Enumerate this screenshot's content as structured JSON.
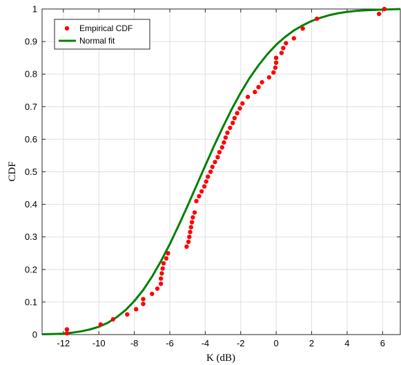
{
  "chart_data": {
    "type": "scatter",
    "title": "",
    "xlabel": "K (dB)",
    "ylabel": "CDF",
    "xlim": [
      -13.2,
      7
    ],
    "ylim": [
      0,
      1
    ],
    "xticks": [
      -12,
      -10,
      -8,
      -6,
      -4,
      -2,
      0,
      2,
      4,
      6
    ],
    "yticks": [
      0,
      0.1,
      0.2,
      0.3,
      0.4,
      0.5,
      0.6,
      0.7,
      0.8,
      0.9,
      1
    ],
    "xtick_labels": [
      "-12",
      "-10",
      "-8",
      "-6",
      "-4",
      "-2",
      "0",
      "2",
      "4",
      "6"
    ],
    "ytick_labels": [
      "0",
      "0.1",
      "0.2",
      "0.3",
      "0.4",
      "0.5",
      "0.6",
      "0.7",
      "0.8",
      "0.9",
      "1"
    ],
    "grid": true,
    "legend_position": "top-left",
    "series": [
      {
        "name": "Empirical CDF",
        "kind": "points",
        "color": "#ff0000",
        "x": [
          -11.8,
          -11.8,
          -9.9,
          -9.2,
          -8.4,
          -7.9,
          -7.5,
          -7.5,
          -7.0,
          -6.7,
          -6.5,
          -6.5,
          -6.45,
          -6.4,
          -6.35,
          -6.2,
          -6.1,
          -5.05,
          -4.95,
          -4.9,
          -4.85,
          -4.8,
          -4.75,
          -4.7,
          -4.6,
          -4.5,
          -4.35,
          -4.2,
          -4.05,
          -3.95,
          -3.85,
          -3.7,
          -3.6,
          -3.45,
          -3.3,
          -3.2,
          -3.05,
          -2.95,
          -2.85,
          -2.75,
          -2.6,
          -2.45,
          -2.35,
          -2.2,
          -2.05,
          -1.9,
          -1.6,
          -1.2,
          -1.0,
          -0.8,
          -0.4,
          -0.15,
          -0.05,
          0.0,
          0.0,
          0.3,
          0.4,
          0.55,
          1.0,
          1.5,
          2.3,
          5.8,
          6.1
        ],
        "y": [
          0.004,
          0.016,
          0.031,
          0.047,
          0.062,
          0.078,
          0.094,
          0.109,
          0.125,
          0.141,
          0.156,
          0.172,
          0.188,
          0.203,
          0.219,
          0.234,
          0.25,
          0.27,
          0.285,
          0.3,
          0.315,
          0.33,
          0.345,
          0.36,
          0.375,
          0.41,
          0.425,
          0.44,
          0.455,
          0.47,
          0.485,
          0.5,
          0.515,
          0.53,
          0.545,
          0.56,
          0.575,
          0.59,
          0.605,
          0.62,
          0.635,
          0.65,
          0.665,
          0.68,
          0.695,
          0.71,
          0.73,
          0.745,
          0.76,
          0.775,
          0.79,
          0.805,
          0.82,
          0.835,
          0.85,
          0.865,
          0.88,
          0.895,
          0.91,
          0.94,
          0.97,
          0.985,
          1.0
        ]
      },
      {
        "name": "Normal fit",
        "kind": "line",
        "color": "#007f00",
        "x": [
          -13.2,
          -12.5,
          -12.0,
          -11.5,
          -11.0,
          -10.5,
          -10.0,
          -9.5,
          -9.0,
          -8.5,
          -8.0,
          -7.5,
          -7.0,
          -6.5,
          -6.0,
          -5.5,
          -5.0,
          -4.5,
          -4.0,
          -3.5,
          -3.0,
          -2.5,
          -2.0,
          -1.5,
          -1.0,
          -0.5,
          0.0,
          0.5,
          1.0,
          1.5,
          2.0,
          2.5,
          3.0,
          3.5,
          4.0,
          4.5,
          5.0,
          5.5,
          6.0,
          6.5,
          7.0
        ],
        "y": [
          0.001,
          0.002,
          0.003,
          0.006,
          0.01,
          0.016,
          0.024,
          0.036,
          0.053,
          0.075,
          0.103,
          0.137,
          0.178,
          0.225,
          0.278,
          0.335,
          0.395,
          0.457,
          0.519,
          0.58,
          0.638,
          0.693,
          0.743,
          0.788,
          0.827,
          0.861,
          0.89,
          0.914,
          0.934,
          0.95,
          0.963,
          0.973,
          0.981,
          0.987,
          0.991,
          0.994,
          0.996,
          0.997,
          0.998,
          0.999,
          1.0
        ]
      }
    ]
  }
}
